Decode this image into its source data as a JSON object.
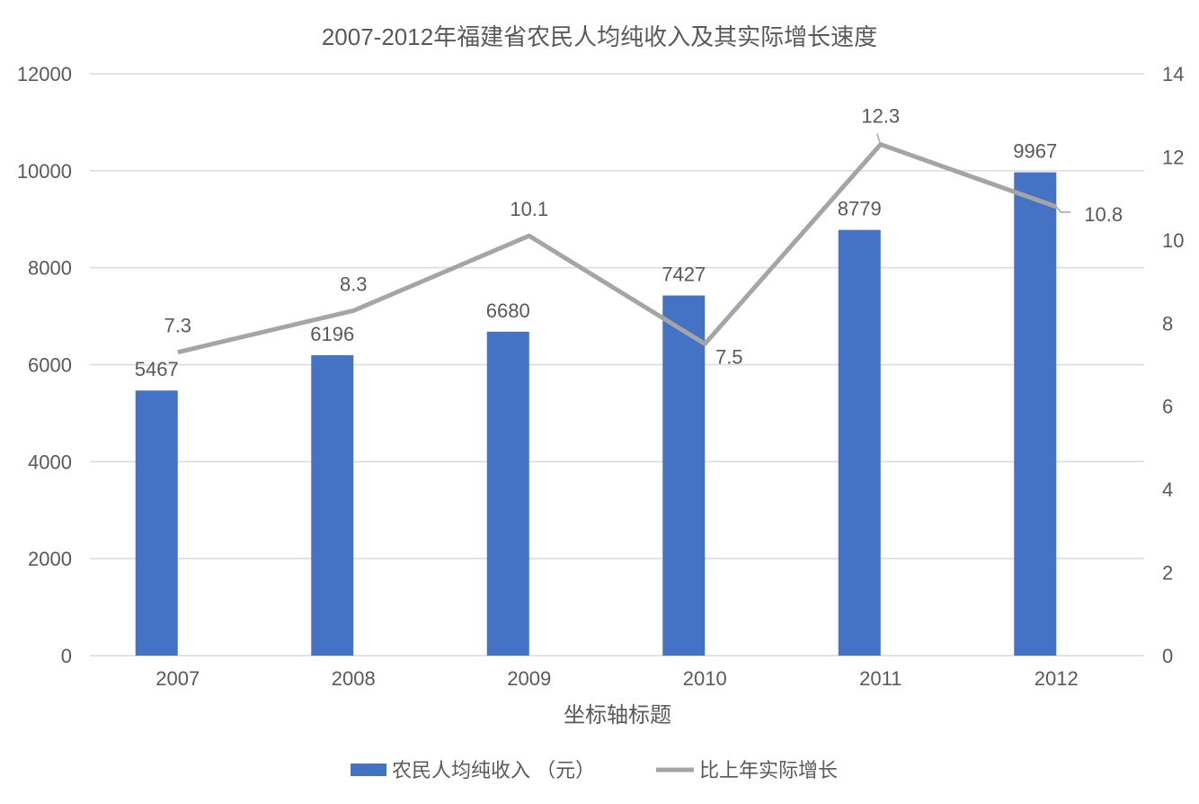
{
  "chart_data": {
    "type": "bar+line",
    "title": "2007-2012年福建省农民人均纯收入及其实际增长速度",
    "xlabel": "坐标轴标题",
    "categories": [
      "2007",
      "2008",
      "2009",
      "2010",
      "2011",
      "2012"
    ],
    "series": [
      {
        "name": "农民人均纯收入 （元）",
        "type": "bar",
        "axis": "left",
        "color": "#4472C4",
        "values": [
          5467,
          6196,
          6680,
          7427,
          8779,
          9967
        ]
      },
      {
        "name": "比上年实际增长",
        "type": "line",
        "axis": "right",
        "color": "#A5A5A5",
        "values": [
          7.3,
          8.3,
          10.1,
          7.5,
          12.3,
          10.8
        ]
      }
    ],
    "y_left": {
      "range": [
        0,
        12000
      ],
      "ticks": [
        "0",
        "2000",
        "4000",
        "6000",
        "8000",
        "10000",
        "12000"
      ]
    },
    "y_right": {
      "range": [
        0,
        14
      ],
      "ticks": [
        "0",
        "2",
        "4",
        "6",
        "8",
        "10",
        "12",
        "14"
      ]
    },
    "grid": true,
    "legend": "bottom",
    "gridColor": "#D9D9D9",
    "textColor": "#595959"
  }
}
